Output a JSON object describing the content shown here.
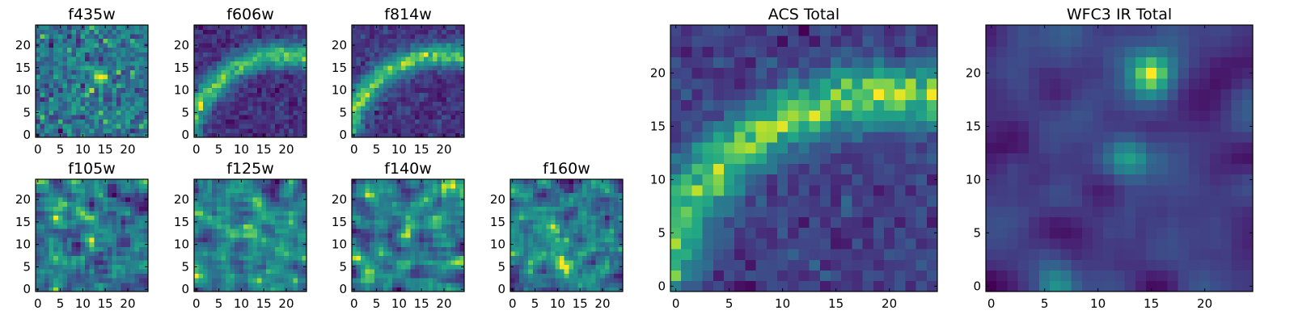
{
  "figure": {
    "background": "#ffffff"
  },
  "chart_data": [
    {
      "id": "f435w",
      "type": "heatmap",
      "title": "f435w",
      "grid_size": 25,
      "xlim": [
        0,
        24
      ],
      "ylim": [
        0,
        24
      ],
      "xticks": [
        0,
        5,
        10,
        15,
        20
      ],
      "yticks": [
        0,
        5,
        10,
        15,
        20
      ],
      "colormap": "viridis",
      "pattern": "noise",
      "seed": 11
    },
    {
      "id": "f606w",
      "type": "heatmap",
      "title": "f606w",
      "grid_size": 25,
      "xlim": [
        0,
        24
      ],
      "ylim": [
        0,
        24
      ],
      "xticks": [
        0,
        5,
        10,
        15,
        20
      ],
      "yticks": [
        0,
        5,
        10,
        15,
        20
      ],
      "colormap": "viridis",
      "pattern": "arc",
      "seed": 23
    },
    {
      "id": "f814w",
      "type": "heatmap",
      "title": "f814w",
      "grid_size": 25,
      "xlim": [
        0,
        24
      ],
      "ylim": [
        0,
        24
      ],
      "xticks": [
        0,
        5,
        10,
        15,
        20
      ],
      "yticks": [
        0,
        5,
        10,
        15,
        20
      ],
      "colormap": "viridis",
      "pattern": "arc",
      "seed": 37
    },
    {
      "id": "f105w",
      "type": "heatmap",
      "title": "f105w",
      "grid_size": 25,
      "xlim": [
        0,
        24
      ],
      "ylim": [
        0,
        24
      ],
      "xticks": [
        0,
        5,
        10,
        15,
        20
      ],
      "yticks": [
        0,
        5,
        10,
        15,
        20
      ],
      "colormap": "viridis",
      "pattern": "smooth",
      "seed": 41
    },
    {
      "id": "f125w",
      "type": "heatmap",
      "title": "f125w",
      "grid_size": 25,
      "xlim": [
        0,
        24
      ],
      "ylim": [
        0,
        24
      ],
      "xticks": [
        0,
        5,
        10,
        15,
        20
      ],
      "yticks": [
        0,
        5,
        10,
        15,
        20
      ],
      "colormap": "viridis",
      "pattern": "smooth",
      "seed": 53
    },
    {
      "id": "f140w",
      "type": "heatmap",
      "title": "f140w",
      "grid_size": 25,
      "xlim": [
        0,
        24
      ],
      "ylim": [
        0,
        24
      ],
      "xticks": [
        0,
        5,
        10,
        15,
        20
      ],
      "yticks": [
        0,
        5,
        10,
        15,
        20
      ],
      "colormap": "viridis",
      "pattern": "smooth",
      "seed": 67
    },
    {
      "id": "f160w",
      "type": "heatmap",
      "title": "f160w",
      "grid_size": 25,
      "xlim": [
        0,
        24
      ],
      "ylim": [
        0,
        24
      ],
      "xticks": [
        0,
        5,
        10,
        15,
        20
      ],
      "yticks": [
        0,
        5,
        10,
        15,
        20
      ],
      "colormap": "viridis",
      "pattern": "smooth",
      "seed": 79
    },
    {
      "id": "acs-total",
      "type": "heatmap",
      "title": "ACS Total",
      "grid_size": 25,
      "xlim": [
        0,
        24
      ],
      "ylim": [
        0,
        24
      ],
      "xticks": [
        0,
        5,
        10,
        15,
        20
      ],
      "yticks": [
        0,
        5,
        10,
        15,
        20
      ],
      "colormap": "viridis",
      "pattern": "arc",
      "seed": 97
    },
    {
      "id": "wfc3-ir-total",
      "type": "heatmap",
      "title": "WFC3 IR Total",
      "grid_size": 25,
      "xlim": [
        0,
        24
      ],
      "ylim": [
        0,
        24
      ],
      "xticks": [
        0,
        5,
        10,
        15,
        20
      ],
      "yticks": [
        0,
        5,
        10,
        15,
        20
      ],
      "colormap": "viridis",
      "pattern": "blobs",
      "seed": 113
    }
  ]
}
